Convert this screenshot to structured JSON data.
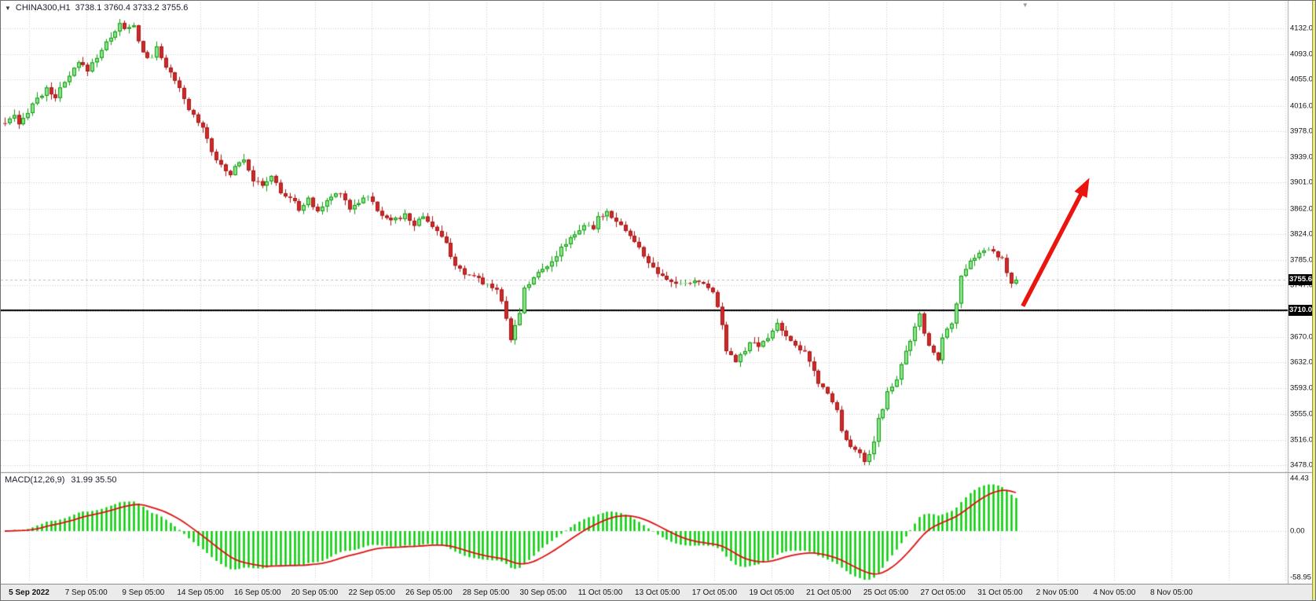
{
  "header": {
    "dropdown_icon": "▼",
    "shift_marker_icon": "▼",
    "symbol_period": "CHINA300,H1",
    "ohlc_text": "3738.1 3760.4 3733.2 3755.6"
  },
  "price_axis": {
    "labels": [
      "4132.0",
      "4093.0",
      "4055.0",
      "4016.0",
      "3978.0",
      "3939.0",
      "3901.0",
      "3862.0",
      "3824.0",
      "3785.0",
      "3747.0",
      "3708.0",
      "3670.0",
      "3632.0",
      "3593.0",
      "3555.0",
      "3516.0",
      "3478.0"
    ],
    "bid_badge": "3755.6",
    "hline_badge": "3710.0"
  },
  "time_axis": {
    "labels": [
      "5 Sep 2022",
      "7 Sep 05:00",
      "9 Sep 05:00",
      "14 Sep 05:00",
      "16 Sep 05:00",
      "20 Sep 05:00",
      "22 Sep 05:00",
      "26 Sep 05:00",
      "28 Sep 05:00",
      "30 Sep 05:00",
      "11 Oct 05:00",
      "13 Oct 05:00",
      "17 Oct 05:00",
      "19 Oct 05:00",
      "21 Oct 05:00",
      "25 Oct 05:00",
      "27 Oct 05:00",
      "31 Oct 05:00",
      "2 Nov 05:00",
      "4 Nov 05:00",
      "8 Nov 05:00"
    ]
  },
  "macd_panel": {
    "title": "MACD(12,26,9)",
    "values": "31.99 35.50",
    "axis_labels": [
      "44.43",
      "0.00",
      "-58.95"
    ]
  },
  "colors": {
    "up_fill": "#8de28d",
    "up_stroke": "#0b9b0b",
    "down_fill": "#cd2a2a",
    "down_stroke": "#a81616",
    "grid": "#cdcdcd",
    "separator": "#8c8c8c",
    "hline": "#000000",
    "bid_line": "#b9b9cf",
    "macd_hist": "#00cc00",
    "macd_signal": "#dd1111",
    "arrow": "#ea150f",
    "badge_bg": "#000000",
    "badge_fg": "#ffffff",
    "right_strip": "#e9e97e"
  },
  "chart_data": {
    "type": "candlestick",
    "symbol": "CHINA300",
    "timeframe": "H1",
    "current_ohlc": {
      "open": 3738.1,
      "high": 3760.4,
      "low": 3733.2,
      "close": 3755.6
    },
    "bid_price": 3755.6,
    "horizontal_line_price": 3710.0,
    "y_axis": {
      "min": 3478.0,
      "max": 4132.0,
      "tick_step": 38.5
    },
    "x_range": {
      "start": "5 Sep 2022",
      "end": "8 Nov 2022"
    },
    "num_candles": 221,
    "price_path": [
      [
        0,
        3990
      ],
      [
        2,
        4000
      ],
      [
        3,
        3985
      ],
      [
        6,
        4020
      ],
      [
        9,
        4040
      ],
      [
        11,
        4030
      ],
      [
        14,
        4060
      ],
      [
        16,
        4080
      ],
      [
        18,
        4070
      ],
      [
        21,
        4100
      ],
      [
        23,
        4120
      ],
      [
        25,
        4138
      ],
      [
        26,
        4130
      ],
      [
        28,
        4135
      ],
      [
        30,
        4095
      ],
      [
        32,
        4085
      ],
      [
        33,
        4105
      ],
      [
        35,
        4075
      ],
      [
        38,
        4040
      ],
      [
        40,
        4010
      ],
      [
        43,
        3985
      ],
      [
        45,
        3950
      ],
      [
        47,
        3925
      ],
      [
        49,
        3912
      ],
      [
        50,
        3928
      ],
      [
        52,
        3938
      ],
      [
        54,
        3905
      ],
      [
        56,
        3895
      ],
      [
        58,
        3912
      ],
      [
        60,
        3885
      ],
      [
        62,
        3878
      ],
      [
        64,
        3862
      ],
      [
        66,
        3875
      ],
      [
        68,
        3858
      ],
      [
        71,
        3880
      ],
      [
        73,
        3888
      ],
      [
        75,
        3862
      ],
      [
        76,
        3868
      ],
      [
        79,
        3882
      ],
      [
        81,
        3858
      ],
      [
        83,
        3850
      ],
      [
        85,
        3845
      ],
      [
        87,
        3852
      ],
      [
        89,
        3838
      ],
      [
        91,
        3852
      ],
      [
        94,
        3828
      ],
      [
        96,
        3808
      ],
      [
        98,
        3778
      ],
      [
        100,
        3760
      ],
      [
        102,
        3762
      ],
      [
        104,
        3752
      ],
      [
        107,
        3742
      ],
      [
        109,
        3700
      ],
      [
        110,
        3668
      ],
      [
        112,
        3705
      ],
      [
        113,
        3745
      ],
      [
        115,
        3758
      ],
      [
        117,
        3772
      ],
      [
        120,
        3792
      ],
      [
        122,
        3812
      ],
      [
        124,
        3825
      ],
      [
        126,
        3838
      ],
      [
        128,
        3830
      ],
      [
        129,
        3848
      ],
      [
        131,
        3858
      ],
      [
        133,
        3845
      ],
      [
        135,
        3830
      ],
      [
        137,
        3812
      ],
      [
        139,
        3792
      ],
      [
        141,
        3772
      ],
      [
        143,
        3758
      ],
      [
        145,
        3752
      ],
      [
        148,
        3748
      ],
      [
        150,
        3755
      ],
      [
        152,
        3748
      ],
      [
        154,
        3740
      ],
      [
        156,
        3688
      ],
      [
        157,
        3652
      ],
      [
        159,
        3635
      ],
      [
        161,
        3648
      ],
      [
        162,
        3662
      ],
      [
        164,
        3655
      ],
      [
        166,
        3668
      ],
      [
        168,
        3690
      ],
      [
        169,
        3682
      ],
      [
        170,
        3668
      ],
      [
        172,
        3660
      ],
      [
        174,
        3645
      ],
      [
        176,
        3618
      ],
      [
        177,
        3600
      ],
      [
        179,
        3588
      ],
      [
        181,
        3560
      ],
      [
        182,
        3530
      ],
      [
        184,
        3508
      ],
      [
        186,
        3495
      ],
      [
        187,
        3482
      ],
      [
        189,
        3512
      ],
      [
        190,
        3548
      ],
      [
        191,
        3562
      ],
      [
        192,
        3588
      ],
      [
        194,
        3608
      ],
      [
        195,
        3632
      ],
      [
        197,
        3665
      ],
      [
        198,
        3685
      ],
      [
        199,
        3702
      ],
      [
        200,
        3672
      ],
      [
        202,
        3645
      ],
      [
        203,
        3638
      ],
      [
        204,
        3668
      ],
      [
        206,
        3692
      ],
      [
        207,
        3722
      ],
      [
        208,
        3758
      ],
      [
        210,
        3782
      ],
      [
        211,
        3790
      ],
      [
        212,
        3795
      ],
      [
        214,
        3802
      ],
      [
        215,
        3795
      ],
      [
        217,
        3785
      ],
      [
        218,
        3768
      ],
      [
        219,
        3748
      ],
      [
        220,
        3755.6
      ]
    ],
    "indicator": {
      "name": "MACD",
      "fast": 12,
      "slow": 26,
      "signal": 9,
      "macd_value": 31.99,
      "signal_value": 35.5,
      "axis_max": 44.43,
      "axis_min": -58.95
    },
    "annotations": [
      {
        "type": "arrow",
        "color": "#ea150f",
        "from_candle": 221.5,
        "from_price": 3716,
        "to_candle": 236,
        "to_price": 3908
      }
    ]
  }
}
